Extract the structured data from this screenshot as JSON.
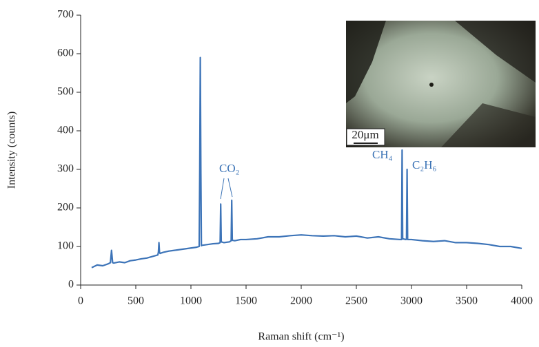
{
  "chart_data": {
    "type": "line",
    "xlabel": "Raman shift (cm⁻¹)",
    "ylabel": "Intensity (counts)",
    "xlim": [
      0,
      4000
    ],
    "xticks": [
      0,
      500,
      1000,
      1500,
      2000,
      2500,
      3000,
      3500,
      4000
    ],
    "ylim": [
      0,
      700
    ],
    "yticks": [
      0,
      100,
      200,
      300,
      400,
      500,
      600,
      700
    ],
    "annotations": [
      "CO₂",
      "CH₄",
      "C₂H₆"
    ],
    "inset_scale_label": "20μm",
    "series": [
      {
        "color": "#3d74b8",
        "x": [
          100,
          150,
          200,
          250,
          270,
          280,
          290,
          300,
          350,
          400,
          450,
          500,
          550,
          600,
          650,
          700,
          705,
          710,
          715,
          720,
          750,
          800,
          850,
          900,
          950,
          1000,
          1050,
          1075,
          1080,
          1085,
          1090,
          1095,
          1100,
          1150,
          1200,
          1250,
          1265,
          1270,
          1275,
          1300,
          1350,
          1365,
          1370,
          1375,
          1400,
          1450,
          1500,
          1600,
          1700,
          1800,
          1900,
          2000,
          2100,
          2200,
          2300,
          2400,
          2500,
          2600,
          2700,
          2800,
          2900,
          2910,
          2915,
          2920,
          2950,
          2955,
          2960,
          2965,
          3000,
          3100,
          3200,
          3300,
          3400,
          3500,
          3600,
          3700,
          3800,
          3900,
          4000
        ],
        "values": [
          45,
          52,
          50,
          55,
          58,
          90,
          58,
          57,
          60,
          58,
          63,
          65,
          68,
          70,
          74,
          78,
          85,
          110,
          85,
          82,
          85,
          88,
          90,
          92,
          94,
          96,
          98,
          100,
          300,
          590,
          300,
          102,
          103,
          105,
          107,
          108,
          110,
          210,
          112,
          110,
          112,
          115,
          220,
          116,
          115,
          118,
          118,
          120,
          125,
          125,
          128,
          130,
          128,
          127,
          128,
          125,
          127,
          122,
          125,
          120,
          118,
          118,
          350,
          120,
          118,
          120,
          300,
          118,
          118,
          115,
          113,
          115,
          110,
          110,
          108,
          105,
          100,
          100,
          95
        ]
      }
    ]
  }
}
